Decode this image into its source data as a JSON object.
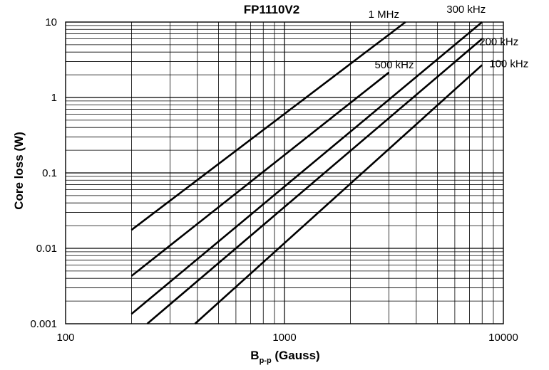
{
  "chart_data": {
    "type": "line",
    "title": "FP1110V2",
    "xlabel": "B",
    "xlabel_sub": "p-p",
    "xlabel_unit": " (Gauss)",
    "ylabel": "Core loss (W)",
    "xscale": "log",
    "yscale": "log",
    "xlim": [
      100,
      10000
    ],
    "ylim": [
      0.001,
      10
    ],
    "grid": true,
    "x_tick_labels": [
      "100",
      "1000",
      "10000"
    ],
    "y_tick_labels": [
      "0.001",
      "0.01",
      "0.1",
      "1",
      "10"
    ],
    "series": [
      {
        "name": "1 MHz",
        "x": [
          200,
          3570
        ],
        "y": [
          0.0175,
          10
        ]
      },
      {
        "name": "500 kHz",
        "x": [
          200,
          3000
        ],
        "y": [
          0.0043,
          2.15
        ]
      },
      {
        "name": "300 kHz",
        "x": [
          200,
          8000
        ],
        "y": [
          0.00135,
          10
        ]
      },
      {
        "name": "200 kHz",
        "x": [
          236,
          8000
        ],
        "y": [
          0.001,
          6.0
        ]
      },
      {
        "name": "100 kHz",
        "x": [
          390,
          8000
        ],
        "y": [
          0.001,
          2.7
        ]
      }
    ]
  }
}
